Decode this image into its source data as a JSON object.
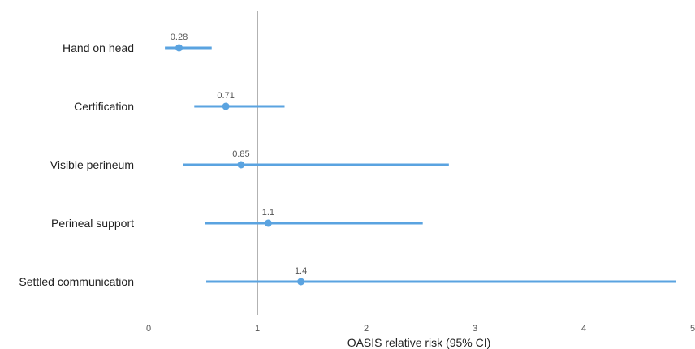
{
  "chart_data": {
    "type": "forest",
    "title": "",
    "xlabel": "OASIS relative risk (95% CI)",
    "ylabel": "",
    "xlim": [
      0,
      5
    ],
    "xticks": [
      "0",
      "1",
      "2",
      "3",
      "4",
      "5"
    ],
    "reference_line": 1,
    "grid": false,
    "legend": "none",
    "color": "#5aa3e0",
    "reference_color": "#999999",
    "rows": [
      {
        "label": "Hand on head",
        "value": 0.28,
        "value_label": "0.28",
        "ci_low": 0.15,
        "ci_high": 0.58
      },
      {
        "label": "Certification",
        "value": 0.71,
        "value_label": "0.71",
        "ci_low": 0.42,
        "ci_high": 1.25
      },
      {
        "label": "Visible perineum",
        "value": 0.85,
        "value_label": "0.85",
        "ci_low": 0.32,
        "ci_high": 2.76
      },
      {
        "label": "Perineal support",
        "value": 1.1,
        "value_label": "1.1",
        "ci_low": 0.52,
        "ci_high": 2.52
      },
      {
        "label": "Settled communication",
        "value": 1.4,
        "value_label": "1.4",
        "ci_low": 0.53,
        "ci_high": 4.85
      }
    ]
  }
}
